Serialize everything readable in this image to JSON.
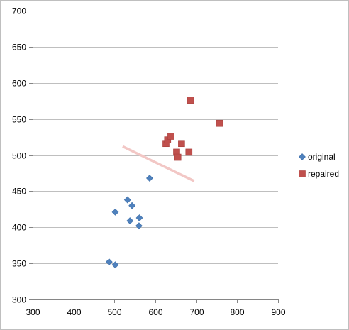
{
  "chart_data": {
    "type": "scatter",
    "title": "",
    "xlabel": "",
    "ylabel": "",
    "xlim": [
      300,
      900
    ],
    "ylim": [
      300,
      700
    ],
    "xticks": [
      300,
      400,
      500,
      600,
      700,
      800,
      900
    ],
    "yticks": [
      300,
      350,
      400,
      450,
      500,
      550,
      600,
      650,
      700
    ],
    "grid": "horizontal",
    "legend_position": "right",
    "series": [
      {
        "name": "original",
        "marker": "diamond",
        "color": "#4f81bd",
        "points": [
          [
            487,
            352
          ],
          [
            502,
            348
          ],
          [
            502,
            421
          ],
          [
            532,
            438
          ],
          [
            538,
            409
          ],
          [
            543,
            430
          ],
          [
            560,
            402
          ],
          [
            561,
            413
          ],
          [
            586,
            468
          ]
        ]
      },
      {
        "name": "repaired",
        "marker": "square",
        "color": "#c0504d",
        "points": [
          [
            626,
            516
          ],
          [
            630,
            521
          ],
          [
            638,
            526
          ],
          [
            652,
            504
          ],
          [
            655,
            497
          ],
          [
            664,
            516
          ],
          [
            682,
            504
          ],
          [
            686,
            576
          ],
          [
            757,
            544
          ]
        ]
      }
    ],
    "annotations": [
      {
        "type": "line",
        "color": "#f2c7c5",
        "from": [
          520,
          512
        ],
        "to": [
          695,
          464
        ]
      }
    ]
  }
}
